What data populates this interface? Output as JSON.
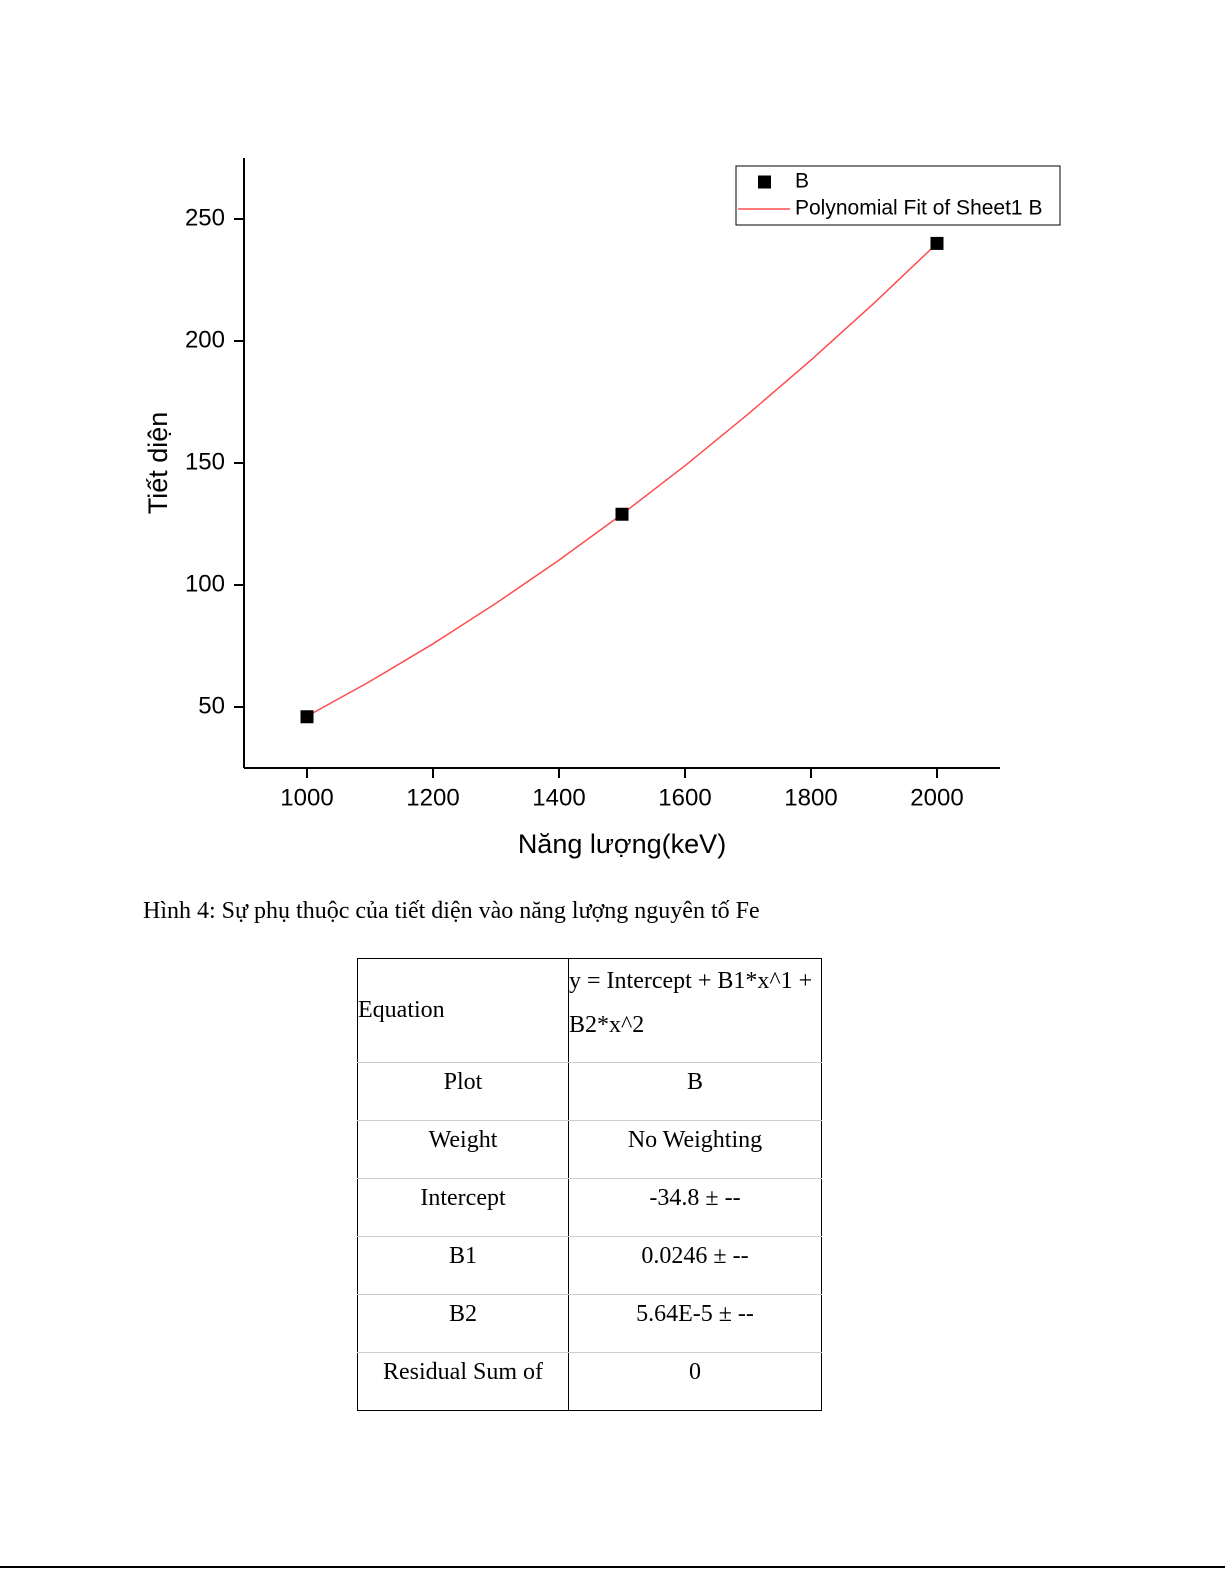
{
  "chart_data": {
    "type": "scatter",
    "x_label": "Năng lượng(keV)",
    "y_label": "Tiết diện",
    "series": [
      {
        "name": "B",
        "type": "scatter",
        "color": "#000000",
        "x": [
          1000,
          1500,
          2000
        ],
        "values": [
          46,
          129,
          240
        ]
      },
      {
        "name": "Polynomial Fit of Sheet1 B",
        "type": "line",
        "color": "#ff4d4d",
        "x": [
          1000,
          1100,
          1200,
          1300,
          1400,
          1500,
          1600,
          1700,
          1800,
          1900,
          2000
        ],
        "values": [
          46.2,
          60.5,
          75.9,
          92.5,
          110.2,
          129.0,
          148.9,
          170.0,
          192.2,
          215.5,
          240.0
        ]
      }
    ],
    "xlim": [
      900,
      2100
    ],
    "xticks": [
      1000,
      1200,
      1400,
      1600,
      1800,
      2000
    ],
    "ylim": [
      25,
      275
    ],
    "yticks": [
      50,
      100,
      150,
      200,
      250
    ],
    "legend": "top-right"
  },
  "caption": "Hình 4: Sự phụ thuộc của tiết diện vào năng lượng nguyên tố Fe",
  "table": {
    "rows": [
      [
        "Equation",
        "y = Intercept + B1*x^1 + B2*x^2"
      ],
      [
        "Plot",
        "B"
      ],
      [
        "Weight",
        "No Weighting"
      ],
      [
        "Intercept",
        "-34.8 ± --"
      ],
      [
        "B1",
        "0.0246 ± --"
      ],
      [
        "B2",
        "5.64E-5 ± --"
      ],
      [
        "Residual Sum of",
        "0"
      ]
    ]
  }
}
